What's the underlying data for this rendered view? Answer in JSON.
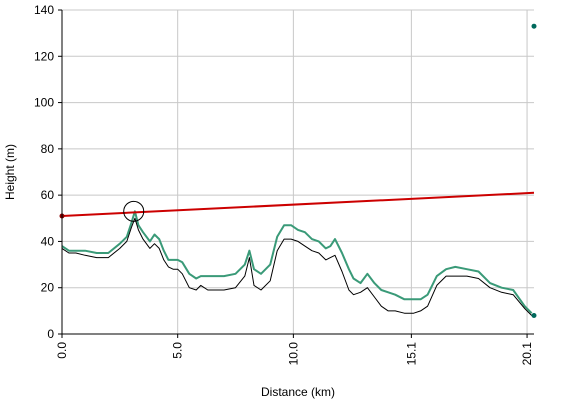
{
  "chart_data": {
    "type": "line",
    "title": "",
    "xlabel": "Distance (km)",
    "ylabel": "Height (m)",
    "xlim": [
      0,
      20.4
    ],
    "ylim": [
      0,
      140
    ],
    "x_ticks": [
      0,
      5,
      10,
      15.1,
      20.1
    ],
    "x_tick_labels": [
      "0.0",
      "5.0",
      "10.0",
      "15.1",
      "20.1"
    ],
    "y_ticks": [
      0,
      20,
      40,
      60,
      80,
      100,
      120,
      140
    ],
    "y_tick_labels": [
      "0",
      "20",
      "40",
      "60",
      "80",
      "100",
      "120",
      "140"
    ],
    "grid": true,
    "series": [
      {
        "color": "#3a9a78",
        "x": [
          0,
          0.3,
          0.6,
          1.0,
          1.5,
          2.0,
          2.5,
          2.8,
          3.0,
          3.15,
          3.3,
          3.5,
          3.8,
          4.0,
          4.2,
          4.4,
          4.6,
          4.8,
          5.0,
          5.2,
          5.5,
          5.8,
          6.0,
          6.3,
          6.6,
          7.0,
          7.5,
          7.9,
          8.1,
          8.3,
          8.6,
          9.0,
          9.3,
          9.6,
          9.9,
          10.2,
          10.5,
          10.8,
          11.1,
          11.4,
          11.6,
          11.8,
          12.1,
          12.4,
          12.6,
          12.9,
          13.2,
          13.5,
          13.8,
          14.1,
          14.4,
          14.8,
          15.2,
          15.5,
          15.8,
          16.2,
          16.6,
          17.0,
          17.5,
          18.0,
          18.5,
          19.0,
          19.5,
          20.0,
          20.3
        ],
        "values": [
          38,
          36,
          36,
          36,
          35,
          35,
          39,
          42,
          48,
          53,
          47,
          44,
          40,
          43,
          41,
          36,
          32,
          32,
          32,
          31,
          26,
          24,
          25,
          25,
          25,
          25,
          26,
          30,
          36,
          28,
          26,
          30,
          42,
          47,
          47,
          45,
          44,
          41,
          40,
          37,
          38,
          41,
          35,
          28,
          24,
          22,
          26,
          22,
          19,
          18,
          17,
          15,
          15,
          15,
          17,
          25,
          28,
          29,
          28,
          27,
          22,
          20,
          19,
          12,
          9
        ]
      },
      {
        "color": "#000000",
        "x": [
          0,
          0.3,
          0.6,
          1.0,
          1.5,
          2.0,
          2.5,
          2.8,
          3.0,
          3.15,
          3.3,
          3.5,
          3.8,
          4.0,
          4.2,
          4.4,
          4.6,
          4.8,
          5.0,
          5.2,
          5.5,
          5.8,
          6.0,
          6.3,
          6.6,
          7.0,
          7.5,
          7.9,
          8.1,
          8.3,
          8.6,
          9.0,
          9.3,
          9.6,
          9.9,
          10.2,
          10.5,
          10.8,
          11.1,
          11.4,
          11.6,
          11.8,
          12.1,
          12.4,
          12.6,
          12.9,
          13.2,
          13.5,
          13.8,
          14.1,
          14.4,
          14.8,
          15.2,
          15.5,
          15.8,
          16.2,
          16.6,
          17.0,
          17.5,
          18.0,
          18.5,
          19.0,
          19.5,
          20.0,
          20.3
        ],
        "values": [
          37,
          35,
          35,
          34,
          33,
          33,
          37,
          40,
          46,
          50,
          45,
          41,
          37,
          39,
          37,
          32,
          29,
          28,
          28,
          26,
          20,
          19,
          21,
          19,
          19,
          19,
          20,
          25,
          33,
          21,
          19,
          23,
          36,
          41,
          41,
          40,
          38,
          36,
          35,
          32,
          33,
          34,
          27,
          19,
          17,
          18,
          20,
          16,
          12,
          10,
          10,
          9,
          9,
          10,
          12,
          21,
          25,
          25,
          25,
          24,
          20,
          18,
          17,
          11,
          8
        ]
      },
      {
        "color": "#cc0000",
        "x": [
          0,
          20.4
        ],
        "values": [
          51,
          61
        ]
      }
    ],
    "markers": [
      {
        "x": 0,
        "y": 51,
        "color": "#8b0000"
      },
      {
        "x": 20.4,
        "y": 133,
        "color": "#00695c"
      },
      {
        "x": 20.4,
        "y": 8,
        "color": "#00695c"
      }
    ],
    "annotations": [
      {
        "type": "circle",
        "x": 3.1,
        "y": 53
      }
    ]
  }
}
